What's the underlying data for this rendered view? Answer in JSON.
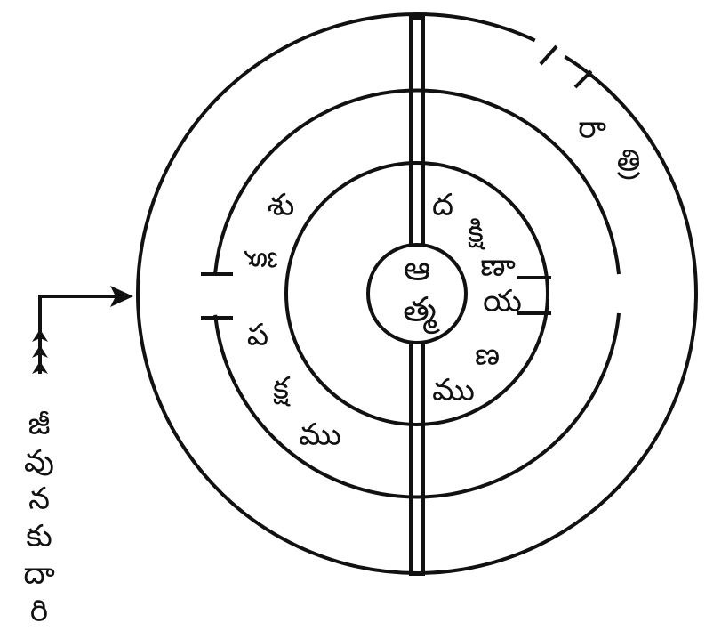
{
  "colors": {
    "stroke": "#111111",
    "background": "#ffffff"
  },
  "center": {
    "glyphs": [
      "ఆ",
      "త్మ"
    ]
  },
  "left_arc": {
    "upper_glyphs": [
      "శు",
      "క్ల"
    ],
    "lower_glyphs": [
      "ప",
      "క్ష",
      "ము"
    ]
  },
  "right_arc": {
    "glyphs": [
      "ద",
      "క్షి",
      "ణా",
      "య",
      "ణ",
      "ము"
    ]
  },
  "outer_arc": {
    "glyphs": [
      "రా",
      "త్రి"
    ]
  },
  "side": {
    "glyphs": [
      "జీ",
      "వు",
      "న",
      "కు",
      "దా",
      "రి"
    ]
  }
}
